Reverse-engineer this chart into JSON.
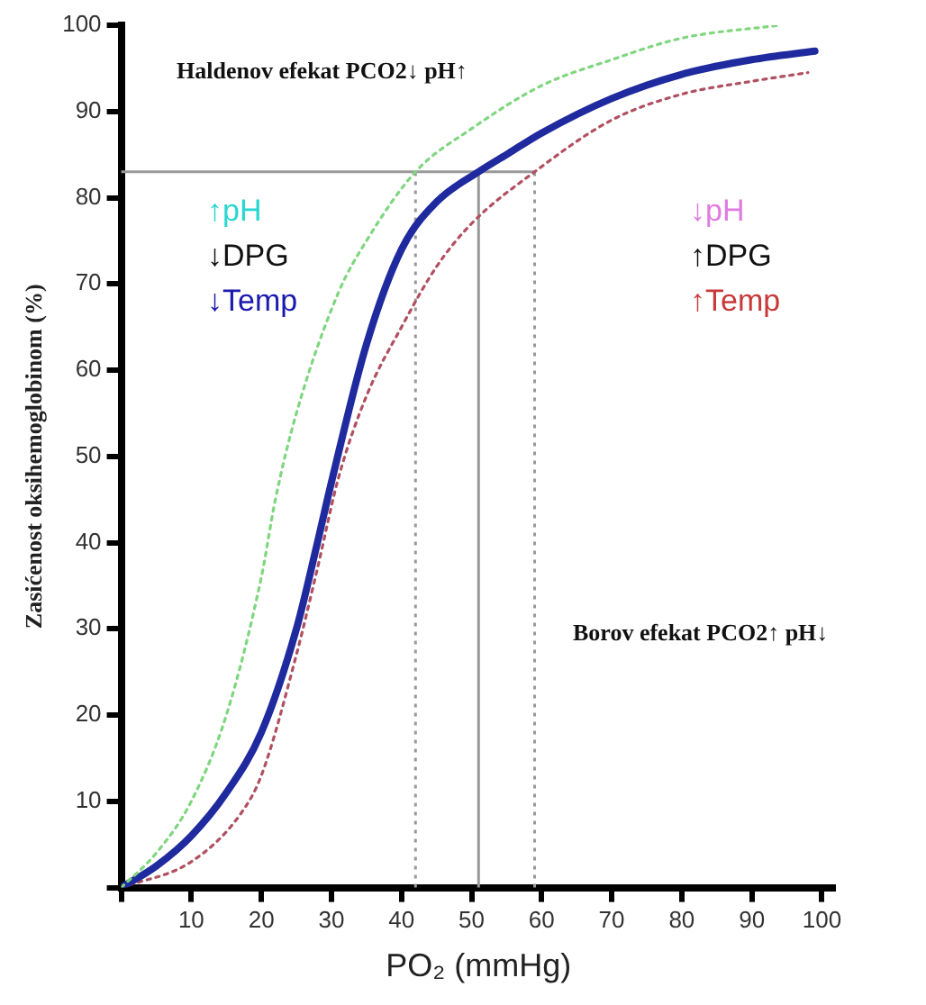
{
  "chart_data": {
    "type": "line",
    "xlabel": "PO₂ (mmHg)",
    "ylabel": "Zasićenost oksihemoglobinom (%)",
    "xlim": [
      0,
      102
    ],
    "ylim": [
      0,
      100
    ],
    "xticks": [
      {
        "value": 0,
        "label": null
      },
      10,
      20,
      30,
      40,
      50,
      60,
      70,
      80,
      90,
      100
    ],
    "yticks": [
      {
        "value": 0,
        "label": null
      },
      10,
      20,
      30,
      40,
      50,
      60,
      70,
      80,
      90,
      100
    ],
    "grid": false,
    "legend": false,
    "marker": "none",
    "series": [
      {
        "color": "#7fd67f",
        "line_style": "dotted",
        "x": [
          0,
          5,
          10,
          15,
          20,
          22,
          25,
          31,
          35,
          42,
          50,
          60,
          70,
          80,
          94
        ],
        "values": [
          0,
          4,
          10,
          20,
          36,
          45,
          55,
          69,
          75,
          83,
          88,
          93,
          96,
          98.5,
          100
        ]
      },
      {
        "color": "#1f2a9e",
        "line_style": "solid",
        "x": [
          0,
          5,
          10,
          15,
          20,
          25,
          28,
          30,
          35,
          40,
          45,
          51,
          55,
          60,
          70,
          80,
          90,
          99
        ],
        "values": [
          0,
          2.5,
          6,
          11,
          18,
          30,
          40,
          47,
          63,
          74,
          79.5,
          83,
          85,
          87.5,
          91.5,
          94.3,
          96,
          97
        ]
      },
      {
        "color": "#b05060",
        "line_style": "dotted",
        "x": [
          0,
          10,
          17,
          20,
          25,
          28,
          31,
          35,
          40,
          45,
          50,
          59,
          70,
          80,
          90,
          98
        ],
        "values": [
          0,
          3,
          8.5,
          13,
          27,
          37,
          47.5,
          57,
          65,
          72,
          77,
          83,
          89,
          92,
          93.5,
          94.5
        ]
      }
    ],
    "ref_lines": [
      {
        "axis": "y",
        "value": 83,
        "color": "#999999",
        "line_style": "solid"
      },
      {
        "axis": "x",
        "value": 42,
        "color": "#999999",
        "line_style": "dotted"
      },
      {
        "axis": "x",
        "value": 51,
        "color": "#999999",
        "line_style": "solid"
      },
      {
        "axis": "x",
        "value": 59,
        "color": "#999999",
        "line_style": "dotted"
      }
    ],
    "annotations": [
      "Haldenov efekat PCO2↓ pH↑",
      "Borov efekat PCO2↑ pH↓",
      "↑pH",
      "↓DPG",
      "↓Temp",
      "↓pH",
      "↑DPG",
      "↑Temp"
    ]
  }
}
